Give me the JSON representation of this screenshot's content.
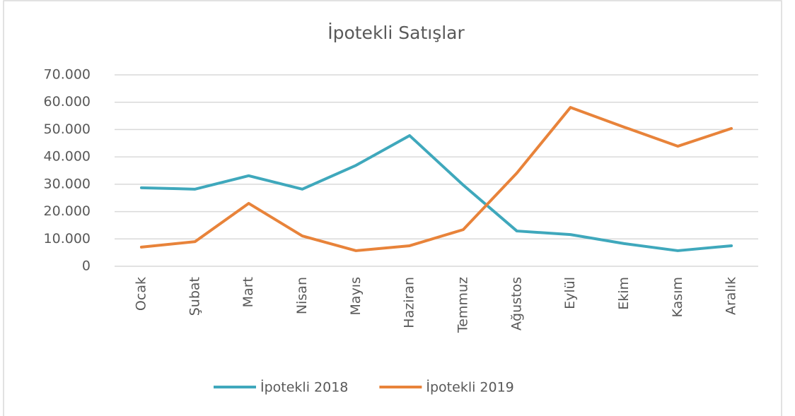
{
  "chart_data": {
    "type": "line",
    "title": "İpotekli Satışlar",
    "categories": [
      "Ocak",
      "Şubat",
      "Mart",
      "Nisan",
      "Mayıs",
      "Haziran",
      "Temmuz",
      "Ağustos",
      "Eylül",
      "Ekim",
      "Kasım",
      "Aralık"
    ],
    "series": [
      {
        "name": "İpotekli 2018",
        "color": "#3fa8bc",
        "values": [
          28700,
          28200,
          33100,
          28200,
          36900,
          47800,
          29700,
          12900,
          11600,
          8300,
          5700,
          7500
        ]
      },
      {
        "name": "İpotekli 2019",
        "color": "#e8833a",
        "values": [
          7000,
          9000,
          23000,
          11100,
          5700,
          7500,
          13400,
          34100,
          58100,
          50900,
          43900,
          50400
        ]
      }
    ],
    "ylim": [
      0,
      70000
    ],
    "yticks": [
      0,
      {
        "value": 10000,
        "label": "10.000"
      },
      {
        "value": 20000,
        "label": "20.000"
      },
      {
        "value": 30000,
        "label": "30.000"
      },
      {
        "value": 40000,
        "label": "40.000"
      },
      {
        "value": 50000,
        "label": "50.000"
      },
      {
        "value": 60000,
        "label": "60.000"
      },
      {
        "value": 70000,
        "label": "70.000"
      }
    ],
    "grid": true,
    "legend": "bottom"
  }
}
